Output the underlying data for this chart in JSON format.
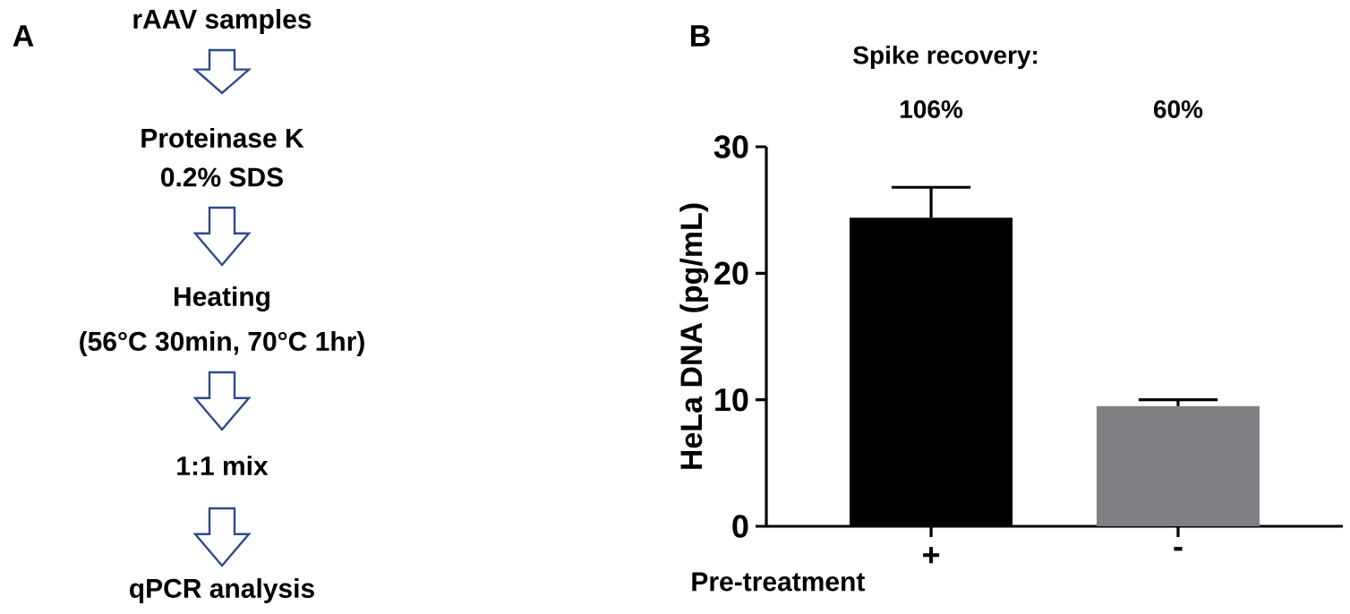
{
  "chart_data": [
    {
      "type": "other",
      "title": "A",
      "annotations": [
        "rAAV samples",
        "Proteinase K",
        "0.2% SDS",
        "Heating",
        "(56°C 30min, 70°C 1hr)",
        "1:1 mix",
        "qPCR analysis"
      ]
    },
    {
      "type": "bar",
      "title": "B",
      "categories": [
        "+",
        "-"
      ],
      "xlabel": "Pre-treatment",
      "ylabel": "HeLa DNA (pg/mL)",
      "values": [
        24.4,
        9.5
      ],
      "errors": [
        2.4,
        0.5
      ],
      "colors": [
        "#000000",
        "#808084"
      ],
      "ylim": [
        0,
        30
      ],
      "yticks": [
        0,
        10,
        20,
        30
      ],
      "annotations": [
        "Spike recovery:",
        "106%",
        "60%"
      ]
    }
  ]
}
